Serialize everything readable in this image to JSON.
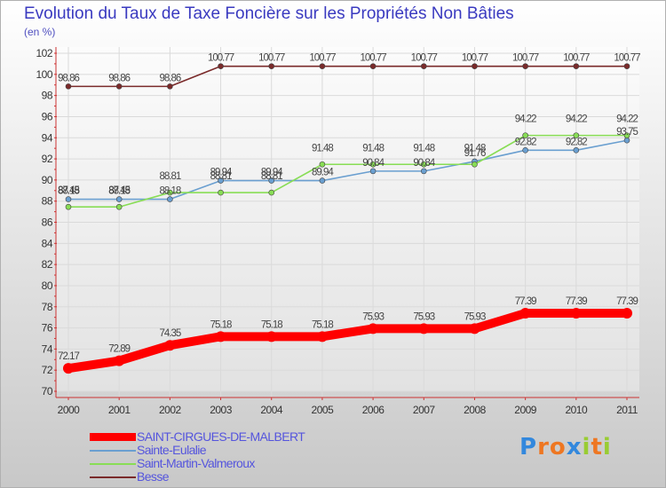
{
  "title": "Evolution du Taux de Taxe Foncière sur les Propriétés Non Bâties",
  "unit": "(en %)",
  "logo": {
    "text": "Proxiti"
  },
  "chart_data": {
    "type": "line",
    "title": "Evolution du Taux de Taxe Foncière sur les Propriétés Non Bâties",
    "ylabel": "(en %)",
    "xlabel": "",
    "categories": [
      "2000",
      "2001",
      "2002",
      "2003",
      "2004",
      "2005",
      "2006",
      "2007",
      "2008",
      "2009",
      "2010",
      "2011"
    ],
    "ylim": [
      70,
      102
    ],
    "ytick_step": 2,
    "grid": true,
    "legend_position": "bottom-left",
    "series": [
      {
        "name": "SAINT-CIRGUES-DE-MALBERT",
        "color": "#ff0000",
        "values": [
          72.17,
          72.89,
          74.35,
          75.18,
          75.18,
          75.18,
          75.93,
          75.93,
          75.93,
          77.39,
          77.39,
          77.39
        ],
        "labels": [
          "72.17",
          "72.89",
          "74.35",
          "75.18",
          "75.18",
          "75.18",
          "75.93",
          "75.93",
          "75.93",
          "77.39",
          "77.39",
          "77.39"
        ]
      },
      {
        "name": "Sainte-Eulalie",
        "color": "#6a9fd0",
        "values": [
          88.18,
          88.18,
          88.18,
          89.94,
          89.94,
          89.94,
          90.84,
          90.84,
          91.76,
          92.82,
          92.82,
          93.75
        ],
        "labels": [
          "88.18",
          "88.18",
          "88.18",
          "89.94",
          "89.94",
          "89.94",
          "90.84",
          "90.84",
          "91.76",
          "92.82",
          "92.82",
          "93.75"
        ]
      },
      {
        "name": "Saint-Martin-Valmeroux",
        "color": "#88dd55",
        "values": [
          87.45,
          87.45,
          88.81,
          88.81,
          88.81,
          91.48,
          91.48,
          91.48,
          91.48,
          94.22,
          94.22,
          94.22
        ],
        "labels": [
          "87.45",
          "87.45",
          "88.81",
          "88.81",
          "88.81",
          "91.48",
          "91.48",
          "91.48",
          "91.48",
          "94.22",
          "94.22",
          "94.22"
        ]
      },
      {
        "name": "Besse",
        "color": "#7a2a2a",
        "values": [
          98.86,
          98.86,
          98.86,
          100.77,
          100.77,
          100.77,
          100.77,
          100.77,
          100.77,
          100.77,
          100.77,
          100.77
        ],
        "labels": [
          "98.86",
          "98.86",
          "98.86",
          "100.77",
          "100.77",
          "100.77",
          "100.77",
          "100.77",
          "100.77",
          "100.77",
          "100.77",
          "100.77"
        ]
      }
    ]
  }
}
